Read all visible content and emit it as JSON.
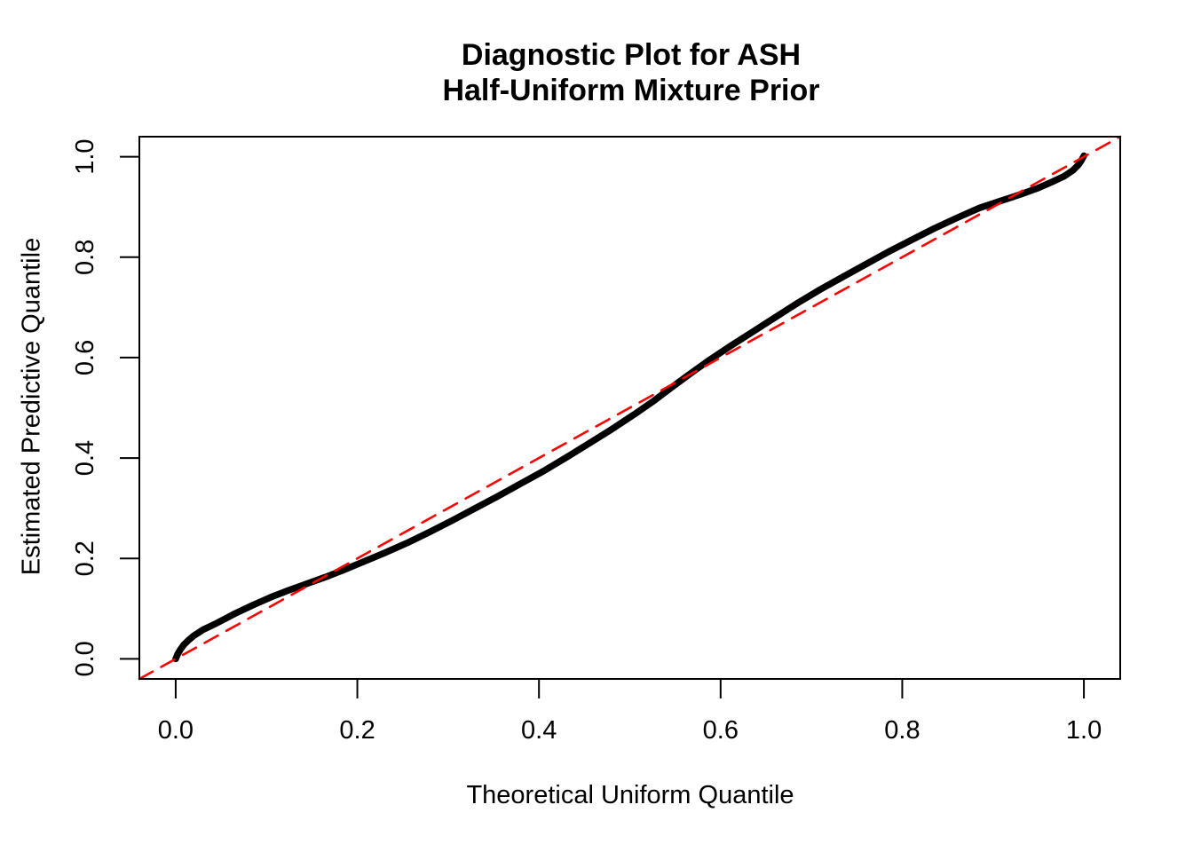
{
  "chart_data": {
    "type": "line",
    "title_lines": [
      "Diagnostic Plot for ASH",
      "Half-Uniform Mixture Prior"
    ],
    "xlabel": "Theoretical Uniform Quantile",
    "ylabel": "Estimated Predictive Quantile",
    "xlim": [
      0,
      1
    ],
    "ylim": [
      0,
      1
    ],
    "axis_expansion": 0.04,
    "grid": false,
    "legend": "none",
    "background_color": "#ffffff",
    "frame_color": "#000000",
    "x_ticks": {
      "values": [
        0.0,
        0.2,
        0.4,
        0.6,
        0.8,
        1.0
      ],
      "labels": [
        "0.0",
        "0.2",
        "0.4",
        "0.6",
        "0.8",
        "1.0"
      ]
    },
    "y_ticks": {
      "values": [
        0.0,
        0.2,
        0.4,
        0.6,
        0.8,
        1.0
      ],
      "labels": [
        "0.0",
        "0.2",
        "0.4",
        "0.6",
        "0.8",
        "1.0"
      ]
    },
    "series": [
      {
        "name": "estimated-predictive-quantile-curve",
        "kind": "qq-point-band",
        "color": "#000000",
        "line_width": 7.5,
        "dash": null,
        "points": [
          [
            0.0,
            0.0
          ],
          [
            0.002,
            0.009
          ],
          [
            0.005,
            0.018
          ],
          [
            0.009,
            0.028
          ],
          [
            0.014,
            0.037
          ],
          [
            0.02,
            0.046
          ],
          [
            0.03,
            0.058
          ],
          [
            0.045,
            0.071
          ],
          [
            0.065,
            0.09
          ],
          [
            0.085,
            0.107
          ],
          [
            0.105,
            0.123
          ],
          [
            0.125,
            0.137
          ],
          [
            0.145,
            0.15
          ],
          [
            0.165,
            0.163
          ],
          [
            0.185,
            0.177
          ],
          [
            0.205,
            0.192
          ],
          [
            0.23,
            0.211
          ],
          [
            0.255,
            0.231
          ],
          [
            0.28,
            0.253
          ],
          [
            0.305,
            0.276
          ],
          [
            0.33,
            0.3
          ],
          [
            0.355,
            0.324
          ],
          [
            0.38,
            0.349
          ],
          [
            0.405,
            0.374
          ],
          [
            0.43,
            0.401
          ],
          [
            0.455,
            0.429
          ],
          [
            0.48,
            0.457
          ],
          [
            0.505,
            0.487
          ],
          [
            0.525,
            0.512
          ],
          [
            0.545,
            0.539
          ],
          [
            0.565,
            0.566
          ],
          [
            0.585,
            0.592
          ],
          [
            0.61,
            0.622
          ],
          [
            0.635,
            0.651
          ],
          [
            0.66,
            0.68
          ],
          [
            0.685,
            0.709
          ],
          [
            0.71,
            0.736
          ],
          [
            0.735,
            0.761
          ],
          [
            0.76,
            0.786
          ],
          [
            0.785,
            0.811
          ],
          [
            0.81,
            0.834
          ],
          [
            0.835,
            0.857
          ],
          [
            0.86,
            0.878
          ],
          [
            0.885,
            0.898
          ],
          [
            0.91,
            0.913
          ],
          [
            0.93,
            0.925
          ],
          [
            0.95,
            0.938
          ],
          [
            0.965,
            0.95
          ],
          [
            0.978,
            0.961
          ],
          [
            0.988,
            0.973
          ],
          [
            0.994,
            0.984
          ],
          [
            0.997,
            0.992
          ],
          [
            1.0,
            1.002
          ]
        ]
      },
      {
        "name": "identity-reference-line",
        "kind": "abline-0-1",
        "color": "#FF0000",
        "line_width": 2.6,
        "dash": [
          17,
          11
        ],
        "points": [
          [
            -0.04,
            -0.04
          ],
          [
            1.04,
            1.04
          ]
        ]
      }
    ]
  }
}
